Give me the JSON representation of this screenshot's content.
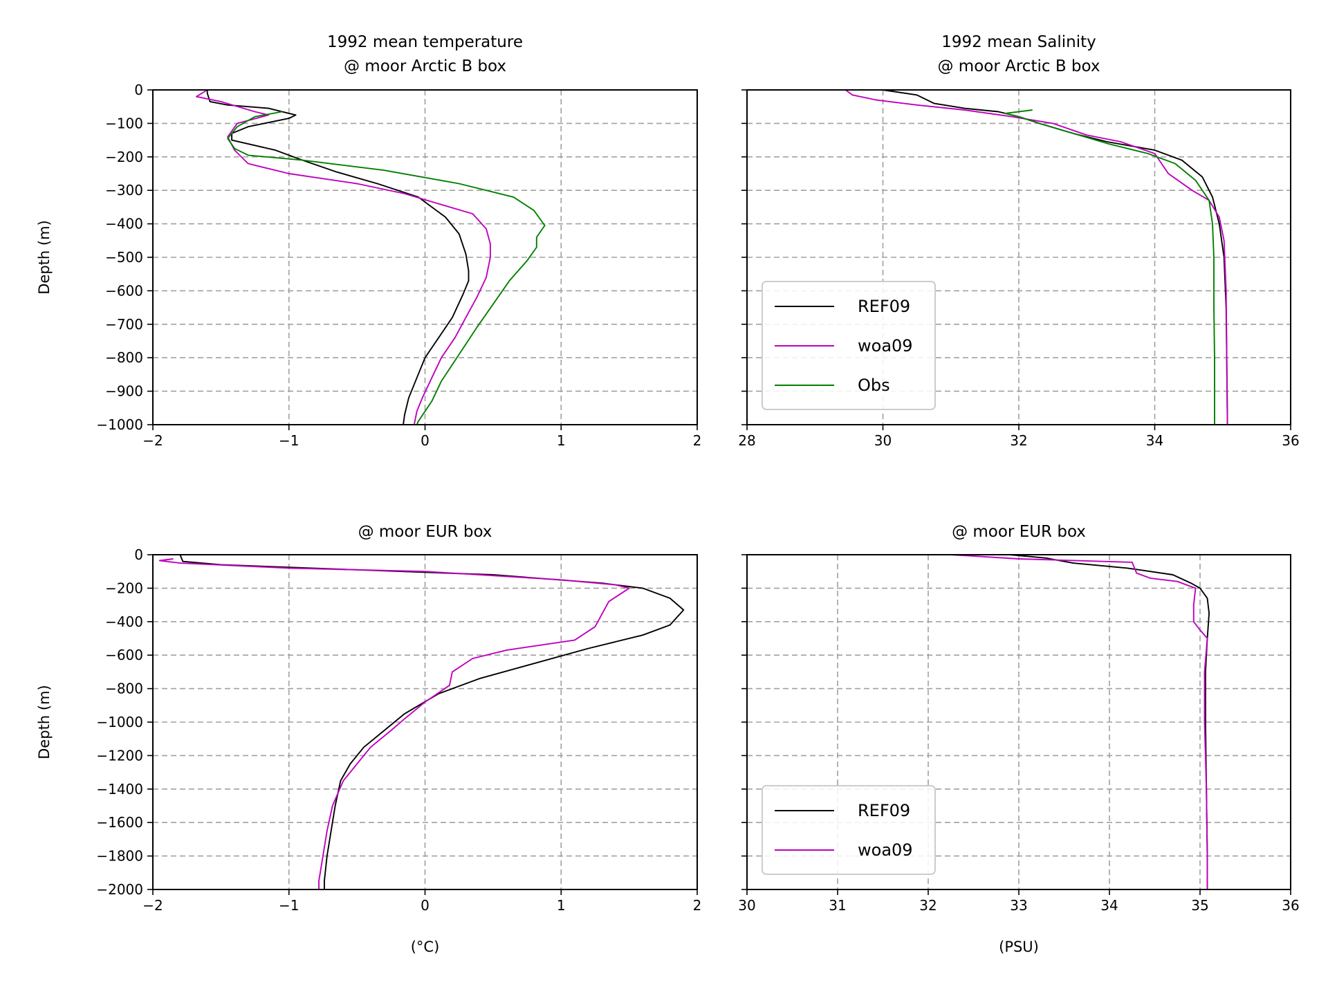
{
  "colors": {
    "REF09": "#000000",
    "woa09": "#bf00bf",
    "Obs": "#007f00"
  },
  "chart_data": [
    {
      "type": "line",
      "id": "p1",
      "title": [
        "1992 mean temperature",
        "@ moor Arctic B box"
      ],
      "xlabel": "",
      "ylabel": "Depth (m)",
      "xlim": [
        -2,
        2
      ],
      "ylim": [
        -1000,
        0
      ],
      "xticks": [
        -2,
        -1,
        0,
        1,
        2
      ],
      "xtick_labels": [
        "−2",
        "−1",
        "0",
        "1",
        "2"
      ],
      "yticks": [
        0,
        -100,
        -200,
        -300,
        -400,
        -500,
        -600,
        -700,
        -800,
        -900,
        -1000
      ],
      "ytick_labels": [
        "0",
        "−100",
        "−200",
        "−300",
        "−400",
        "−500",
        "−600",
        "−700",
        "−800",
        "−900",
        "−1000"
      ],
      "show_ytick_labels": true,
      "grid": true,
      "legend": null,
      "series": [
        {
          "name": "REF09",
          "color": "#000000",
          "points": [
            [
              -1.6,
              0
            ],
            [
              -1.6,
              -10
            ],
            [
              -1.58,
              -35
            ],
            [
              -1.45,
              -45
            ],
            [
              -1.15,
              -55
            ],
            [
              -1.0,
              -70
            ],
            [
              -0.95,
              -75
            ],
            [
              -1.0,
              -85
            ],
            [
              -1.3,
              -110
            ],
            [
              -1.42,
              -130
            ],
            [
              -1.42,
              -150
            ],
            [
              -1.1,
              -180
            ],
            [
              -0.9,
              -210
            ],
            [
              -0.65,
              -245
            ],
            [
              -0.35,
              -280
            ],
            [
              -0.05,
              -320
            ],
            [
              0.15,
              -380
            ],
            [
              0.25,
              -430
            ],
            [
              0.3,
              -490
            ],
            [
              0.32,
              -540
            ],
            [
              0.32,
              -570
            ],
            [
              0.28,
              -610
            ],
            [
              0.2,
              -680
            ],
            [
              0.1,
              -740
            ],
            [
              0.0,
              -800
            ],
            [
              -0.06,
              -860
            ],
            [
              -0.12,
              -920
            ],
            [
              -0.15,
              -970
            ],
            [
              -0.16,
              -1000
            ]
          ]
        },
        {
          "name": "woa09",
          "color": "#bf00bf",
          "points": [
            [
              -1.6,
              0
            ],
            [
              -1.68,
              -20
            ],
            [
              -1.5,
              -35
            ],
            [
              -1.25,
              -65
            ],
            [
              -1.15,
              -75
            ],
            [
              -1.38,
              -100
            ],
            [
              -1.45,
              -140
            ],
            [
              -1.4,
              -180
            ],
            [
              -1.3,
              -220
            ],
            [
              -1.0,
              -250
            ],
            [
              -0.5,
              -280
            ],
            [
              -0.15,
              -310
            ],
            [
              0.1,
              -340
            ],
            [
              0.35,
              -370
            ],
            [
              0.45,
              -415
            ],
            [
              0.48,
              -460
            ],
            [
              0.48,
              -500
            ],
            [
              0.45,
              -560
            ],
            [
              0.38,
              -620
            ],
            [
              0.3,
              -680
            ],
            [
              0.22,
              -740
            ],
            [
              0.12,
              -800
            ],
            [
              0.05,
              -860
            ],
            [
              -0.02,
              -920
            ],
            [
              -0.06,
              -960
            ],
            [
              -0.08,
              -1000
            ]
          ]
        },
        {
          "name": "Obs",
          "color": "#007f00",
          "points": [
            [
              -1.05,
              -65
            ],
            [
              -1.25,
              -80
            ],
            [
              -1.38,
              -110
            ],
            [
              -1.45,
              -145
            ],
            [
              -1.4,
              -175
            ],
            [
              -1.3,
              -195
            ],
            [
              -0.9,
              -210
            ],
            [
              -0.3,
              -240
            ],
            [
              0.25,
              -280
            ],
            [
              0.65,
              -320
            ],
            [
              0.8,
              -360
            ],
            [
              0.88,
              -405
            ],
            [
              0.82,
              -440
            ],
            [
              0.82,
              -470
            ],
            [
              0.75,
              -510
            ],
            [
              0.62,
              -570
            ],
            [
              0.5,
              -640
            ],
            [
              0.38,
              -710
            ],
            [
              0.25,
              -790
            ],
            [
              0.12,
              -870
            ],
            [
              0.05,
              -930
            ],
            [
              -0.05,
              -990
            ],
            [
              -0.06,
              -1000
            ]
          ]
        }
      ]
    },
    {
      "type": "line",
      "id": "p2",
      "title": [
        "1992 mean Salinity",
        "@ moor Arctic B box"
      ],
      "xlabel": "",
      "ylabel": "",
      "xlim": [
        28,
        36
      ],
      "ylim": [
        -1000,
        0
      ],
      "xticks": [
        28,
        30,
        32,
        34,
        36
      ],
      "xtick_labels": [
        "28",
        "30",
        "32",
        "34",
        "36"
      ],
      "yticks": [
        0,
        -100,
        -200,
        -300,
        -400,
        -500,
        -600,
        -700,
        -800,
        -900,
        -1000
      ],
      "ytick_labels": [],
      "show_ytick_labels": false,
      "grid": true,
      "legend": {
        "location": "lower-left",
        "entries": [
          "REF09",
          "woa09",
          "Obs"
        ]
      },
      "series": [
        {
          "name": "REF09",
          "color": "#000000",
          "points": [
            [
              30.0,
              0
            ],
            [
              30.5,
              -15
            ],
            [
              30.75,
              -40
            ],
            [
              31.2,
              -55
            ],
            [
              31.7,
              -65
            ],
            [
              32.0,
              -80
            ],
            [
              32.3,
              -100
            ],
            [
              32.8,
              -130
            ],
            [
              33.3,
              -155
            ],
            [
              34.0,
              -180
            ],
            [
              34.4,
              -210
            ],
            [
              34.7,
              -260
            ],
            [
              34.85,
              -320
            ],
            [
              34.95,
              -400
            ],
            [
              35.02,
              -500
            ],
            [
              35.05,
              -650
            ],
            [
              35.06,
              -800
            ],
            [
              35.07,
              -1000
            ]
          ]
        },
        {
          "name": "woa09",
          "color": "#bf00bf",
          "points": [
            [
              29.45,
              0
            ],
            [
              29.55,
              -15
            ],
            [
              29.9,
              -30
            ],
            [
              30.5,
              -45
            ],
            [
              31.2,
              -60
            ],
            [
              31.9,
              -80
            ],
            [
              32.5,
              -100
            ],
            [
              33.0,
              -135
            ],
            [
              33.5,
              -155
            ],
            [
              34.0,
              -190
            ],
            [
              34.2,
              -250
            ],
            [
              34.55,
              -300
            ],
            [
              34.8,
              -330
            ],
            [
              34.95,
              -380
            ],
            [
              35.02,
              -450
            ],
            [
              35.05,
              -600
            ],
            [
              35.06,
              -800
            ],
            [
              35.07,
              -1000
            ]
          ]
        },
        {
          "name": "Obs",
          "color": "#007f00",
          "points": [
            [
              32.2,
              -60
            ],
            [
              31.8,
              -70
            ],
            [
              32.0,
              -80
            ],
            [
              32.3,
              -100
            ],
            [
              32.8,
              -130
            ],
            [
              33.3,
              -160
            ],
            [
              33.9,
              -190
            ],
            [
              34.3,
              -220
            ],
            [
              34.6,
              -270
            ],
            [
              34.8,
              -330
            ],
            [
              34.85,
              -400
            ],
            [
              34.87,
              -500
            ],
            [
              34.87,
              -650
            ],
            [
              34.88,
              -800
            ],
            [
              34.88,
              -1000
            ]
          ]
        }
      ]
    },
    {
      "type": "line",
      "id": "p3",
      "title": [
        "@ moor EUR box"
      ],
      "xlabel": "(°C)",
      "ylabel": "Depth (m)",
      "xlim": [
        -2,
        2
      ],
      "ylim": [
        -2000,
        0
      ],
      "xticks": [
        -2,
        -1,
        0,
        1,
        2
      ],
      "xtick_labels": [
        "−2",
        "−1",
        "0",
        "1",
        "2"
      ],
      "yticks": [
        0,
        -200,
        -400,
        -600,
        -800,
        -1000,
        -1200,
        -1400,
        -1600,
        -1800,
        -2000
      ],
      "ytick_labels": [
        "0",
        "−200",
        "−400",
        "−600",
        "−800",
        "−1000",
        "−1200",
        "−1400",
        "−1600",
        "−1800",
        "−2000"
      ],
      "show_ytick_labels": true,
      "grid": true,
      "legend": null,
      "series": [
        {
          "name": "REF09",
          "color": "#000000",
          "points": [
            [
              -1.8,
              0
            ],
            [
              -1.78,
              -40
            ],
            [
              -1.5,
              -60
            ],
            [
              -0.5,
              -90
            ],
            [
              0.5,
              -120
            ],
            [
              1.3,
              -170
            ],
            [
              1.6,
              -200
            ],
            [
              1.8,
              -260
            ],
            [
              1.9,
              -330
            ],
            [
              1.8,
              -420
            ],
            [
              1.6,
              -480
            ],
            [
              1.2,
              -560
            ],
            [
              0.8,
              -650
            ],
            [
              0.4,
              -740
            ],
            [
              0.1,
              -830
            ],
            [
              -0.15,
              -950
            ],
            [
              -0.3,
              -1050
            ],
            [
              -0.45,
              -1150
            ],
            [
              -0.55,
              -1250
            ],
            [
              -0.62,
              -1350
            ],
            [
              -0.66,
              -1500
            ],
            [
              -0.69,
              -1650
            ],
            [
              -0.72,
              -1800
            ],
            [
              -0.74,
              -1950
            ],
            [
              -0.74,
              -2000
            ]
          ]
        },
        {
          "name": "woa09",
          "color": "#bf00bf",
          "points": [
            [
              -1.85,
              -25
            ],
            [
              -1.95,
              -35
            ],
            [
              -1.8,
              -50
            ],
            [
              -1.0,
              -80
            ],
            [
              0.0,
              -100
            ],
            [
              1.0,
              -150
            ],
            [
              1.4,
              -180
            ],
            [
              1.5,
              -200
            ],
            [
              1.35,
              -280
            ],
            [
              1.25,
              -430
            ],
            [
              1.1,
              -510
            ],
            [
              0.6,
              -570
            ],
            [
              0.35,
              -620
            ],
            [
              0.2,
              -700
            ],
            [
              0.18,
              -780
            ],
            [
              0.0,
              -880
            ],
            [
              -0.15,
              -980
            ],
            [
              -0.25,
              -1050
            ],
            [
              -0.4,
              -1150
            ],
            [
              -0.5,
              -1250
            ],
            [
              -0.6,
              -1350
            ],
            [
              -0.68,
              -1500
            ],
            [
              -0.72,
              -1650
            ],
            [
              -0.75,
              -1800
            ],
            [
              -0.78,
              -1950
            ],
            [
              -0.78,
              -2000
            ]
          ]
        }
      ]
    },
    {
      "type": "line",
      "id": "p4",
      "title": [
        "@ moor EUR box"
      ],
      "xlabel": "(PSU)",
      "ylabel": "",
      "xlim": [
        30,
        36
      ],
      "ylim": [
        -2000,
        0
      ],
      "xticks": [
        30,
        31,
        32,
        33,
        34,
        35,
        36
      ],
      "xtick_labels": [
        "30",
        "31",
        "32",
        "33",
        "34",
        "35",
        "36"
      ],
      "yticks": [
        0,
        -200,
        -400,
        -600,
        -800,
        -1000,
        -1200,
        -1400,
        -1600,
        -1800,
        -2000
      ],
      "ytick_labels": [],
      "show_ytick_labels": false,
      "grid": true,
      "legend": {
        "location": "lower-left",
        "entries": [
          "REF09",
          "woa09"
        ]
      },
      "series": [
        {
          "name": "REF09",
          "color": "#000000",
          "points": [
            [
              32.9,
              0
            ],
            [
              33.3,
              -20
            ],
            [
              33.6,
              -50
            ],
            [
              34.2,
              -80
            ],
            [
              34.7,
              -120
            ],
            [
              34.9,
              -170
            ],
            [
              35.0,
              -200
            ],
            [
              35.08,
              -260
            ],
            [
              35.1,
              -350
            ],
            [
              35.08,
              -500
            ],
            [
              35.06,
              -700
            ],
            [
              35.06,
              -1000
            ],
            [
              35.07,
              -1400
            ],
            [
              35.08,
              -1800
            ],
            [
              35.08,
              -2000
            ]
          ]
        },
        {
          "name": "woa09",
          "color": "#bf00bf",
          "points": [
            [
              32.25,
              0
            ],
            [
              33.0,
              -25
            ],
            [
              34.25,
              -45
            ],
            [
              34.3,
              -110
            ],
            [
              34.45,
              -140
            ],
            [
              34.75,
              -160
            ],
            [
              34.9,
              -190
            ],
            [
              34.95,
              -200
            ],
            [
              34.93,
              -300
            ],
            [
              34.93,
              -400
            ],
            [
              35.0,
              -450
            ],
            [
              35.08,
              -500
            ],
            [
              35.05,
              -700
            ],
            [
              35.05,
              -1000
            ],
            [
              35.07,
              -1400
            ],
            [
              35.08,
              -1800
            ],
            [
              35.08,
              -2000
            ]
          ]
        }
      ]
    }
  ]
}
